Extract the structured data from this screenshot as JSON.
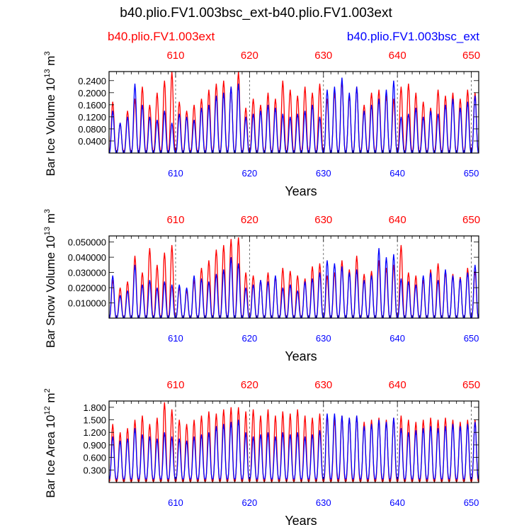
{
  "figure": {
    "title": "b40.plio.FV1.003bsc_ext-b40.plio.FV1.003ext",
    "legend_left": "b40.plio.FV1.003ext",
    "legend_right": "b40.plio.FV1.003bsc_ext",
    "colors": {
      "series_a": "#ff0000",
      "series_b": "#0000ff",
      "axis": "#000000"
    }
  },
  "chart_data": [
    {
      "type": "line",
      "title": "",
      "xlabel": "Years",
      "ylabel_main": "Bar Ice Volume 10",
      "ylabel_exp": "13",
      "ylabel_unit": " m",
      "ylabel_unit_exp": "3",
      "xlim": [
        601,
        651
      ],
      "ylim": [
        0,
        0.27
      ],
      "xticks": [
        610,
        620,
        630,
        640,
        650
      ],
      "xtick_labels": [
        "610",
        "620",
        "630",
        "640",
        "650"
      ],
      "yticks": [
        0.04,
        0.08,
        0.12,
        0.16,
        0.2,
        0.24
      ],
      "ytick_labels": [
        "0.0400",
        "0.0800",
        "0.1200",
        "0.1600",
        "0.2000",
        "0.2400"
      ],
      "series": [
        {
          "name": "b40.plio.FV1.003ext",
          "color": "#ff0000",
          "min": 0.005,
          "peaks": [
            0.17,
            0.1,
            0.14,
            0.18,
            0.22,
            0.16,
            0.2,
            0.24,
            0.27,
            0.17,
            0.14,
            0.16,
            0.18,
            0.21,
            0.23,
            0.24,
            0.22,
            0.27,
            0.15,
            0.18,
            0.16,
            0.2,
            0.18,
            0.24,
            0.21,
            0.19,
            0.22,
            0.2,
            0.23,
            0.18,
            0.2,
            0.24,
            0.19,
            0.22,
            0.16,
            0.2,
            0.21,
            0.19,
            0.18,
            0.22,
            0.23,
            0.2,
            0.17,
            0.15,
            0.21,
            0.19,
            0.2,
            0.18,
            0.21,
            0.2
          ]
        },
        {
          "name": "b40.plio.FV1.003bsc_ext",
          "color": "#0000ff",
          "min": 0.0,
          "peaks": [
            0.14,
            0.1,
            0.12,
            0.23,
            0.16,
            0.12,
            0.11,
            0.14,
            0.1,
            0.13,
            0.12,
            0.11,
            0.15,
            0.16,
            0.19,
            0.2,
            0.22,
            0.23,
            0.12,
            0.13,
            0.14,
            0.16,
            0.15,
            0.13,
            0.12,
            0.13,
            0.14,
            0.16,
            0.12,
            0.21,
            0.22,
            0.25,
            0.2,
            0.22,
            0.14,
            0.16,
            0.18,
            0.21,
            0.24,
            0.12,
            0.13,
            0.15,
            0.12,
            0.14,
            0.13,
            0.16,
            0.18,
            0.15,
            0.17,
            0.19
          ]
        }
      ]
    },
    {
      "type": "line",
      "title": "",
      "xlabel": "Years",
      "ylabel_main": "Bar Snow Volume 10",
      "ylabel_exp": "13",
      "ylabel_unit": " m",
      "ylabel_unit_exp": "3",
      "xlim": [
        601,
        651
      ],
      "ylim": [
        0,
        0.054
      ],
      "xticks": [
        610,
        620,
        630,
        640,
        650
      ],
      "xtick_labels": [
        "610",
        "620",
        "630",
        "640",
        "650"
      ],
      "yticks": [
        0.01,
        0.02,
        0.03,
        0.04,
        0.05
      ],
      "ytick_labels": [
        "0.010000",
        "0.020000",
        "0.030000",
        "0.040000",
        "0.050000"
      ],
      "series": [
        {
          "name": "b40.plio.FV1.003ext",
          "color": "#ff0000",
          "min": 0.0,
          "peaks": [
            0.025,
            0.02,
            0.024,
            0.041,
            0.03,
            0.046,
            0.035,
            0.043,
            0.048,
            0.02,
            0.018,
            0.025,
            0.033,
            0.038,
            0.045,
            0.048,
            0.052,
            0.053,
            0.03,
            0.028,
            0.025,
            0.03,
            0.027,
            0.033,
            0.031,
            0.028,
            0.026,
            0.034,
            0.036,
            0.028,
            0.03,
            0.038,
            0.032,
            0.041,
            0.029,
            0.031,
            0.038,
            0.033,
            0.035,
            0.048,
            0.03,
            0.028,
            0.025,
            0.032,
            0.036,
            0.03,
            0.029,
            0.027,
            0.033,
            0.031
          ]
        },
        {
          "name": "b40.plio.FV1.003bsc_ext",
          "color": "#0000ff",
          "min": 0.0,
          "peaks": [
            0.028,
            0.015,
            0.018,
            0.035,
            0.022,
            0.025,
            0.02,
            0.024,
            0.022,
            0.022,
            0.02,
            0.028,
            0.026,
            0.024,
            0.029,
            0.032,
            0.04,
            0.036,
            0.02,
            0.022,
            0.025,
            0.024,
            0.028,
            0.02,
            0.022,
            0.018,
            0.024,
            0.026,
            0.03,
            0.038,
            0.036,
            0.034,
            0.03,
            0.032,
            0.025,
            0.028,
            0.046,
            0.04,
            0.042,
            0.026,
            0.024,
            0.022,
            0.028,
            0.03,
            0.025,
            0.032,
            0.028,
            0.026,
            0.03,
            0.035
          ]
        }
      ]
    },
    {
      "type": "line",
      "title": "",
      "xlabel": "Years",
      "ylabel_main": "Bar Ice Area 10",
      "ylabel_exp": "12",
      "ylabel_unit": " m",
      "ylabel_unit_exp": "2",
      "xlim": [
        601,
        651
      ],
      "ylim": [
        0,
        1.95
      ],
      "xticks": [
        610,
        620,
        630,
        640,
        650
      ],
      "xtick_labels": [
        "610",
        "620",
        "630",
        "640",
        "650"
      ],
      "yticks": [
        0.3,
        0.6,
        0.9,
        1.2,
        1.5,
        1.8
      ],
      "ytick_labels": [
        "0.300",
        "0.600",
        "0.900",
        "1.200",
        "1.500",
        "1.800"
      ],
      "series": [
        {
          "name": "b40.plio.FV1.003ext",
          "color": "#ff0000",
          "min": 0.02,
          "peaks": [
            1.4,
            1.2,
            1.3,
            1.5,
            1.6,
            1.4,
            1.55,
            1.92,
            1.75,
            1.5,
            1.4,
            1.5,
            1.6,
            1.7,
            1.65,
            1.75,
            1.8,
            1.8,
            1.7,
            1.75,
            1.6,
            1.75,
            1.6,
            1.7,
            1.65,
            1.75,
            1.6,
            1.55,
            1.65,
            1.6,
            1.5,
            1.6,
            1.55,
            1.6,
            1.45,
            1.5,
            1.55,
            1.5,
            1.55,
            1.6,
            1.5,
            1.45,
            1.5,
            1.55,
            1.5,
            1.55,
            1.5,
            1.45,
            1.5,
            1.5
          ]
        },
        {
          "name": "b40.plio.FV1.003bsc_ext",
          "color": "#0000ff",
          "min": 0.08,
          "peaks": [
            1.1,
            1.0,
            1.05,
            1.3,
            1.15,
            1.1,
            1.05,
            1.2,
            1.1,
            1.05,
            1.0,
            1.1,
            1.15,
            1.2,
            1.35,
            1.4,
            1.45,
            1.5,
            1.2,
            1.1,
            1.15,
            1.2,
            1.1,
            1.2,
            1.15,
            1.2,
            1.1,
            1.15,
            1.25,
            1.65,
            1.65,
            1.6,
            1.55,
            1.6,
            1.35,
            1.4,
            1.5,
            1.45,
            1.55,
            1.3,
            1.2,
            1.25,
            1.3,
            1.35,
            1.3,
            1.35,
            1.4,
            1.35,
            1.4,
            1.45
          ]
        }
      ]
    }
  ]
}
